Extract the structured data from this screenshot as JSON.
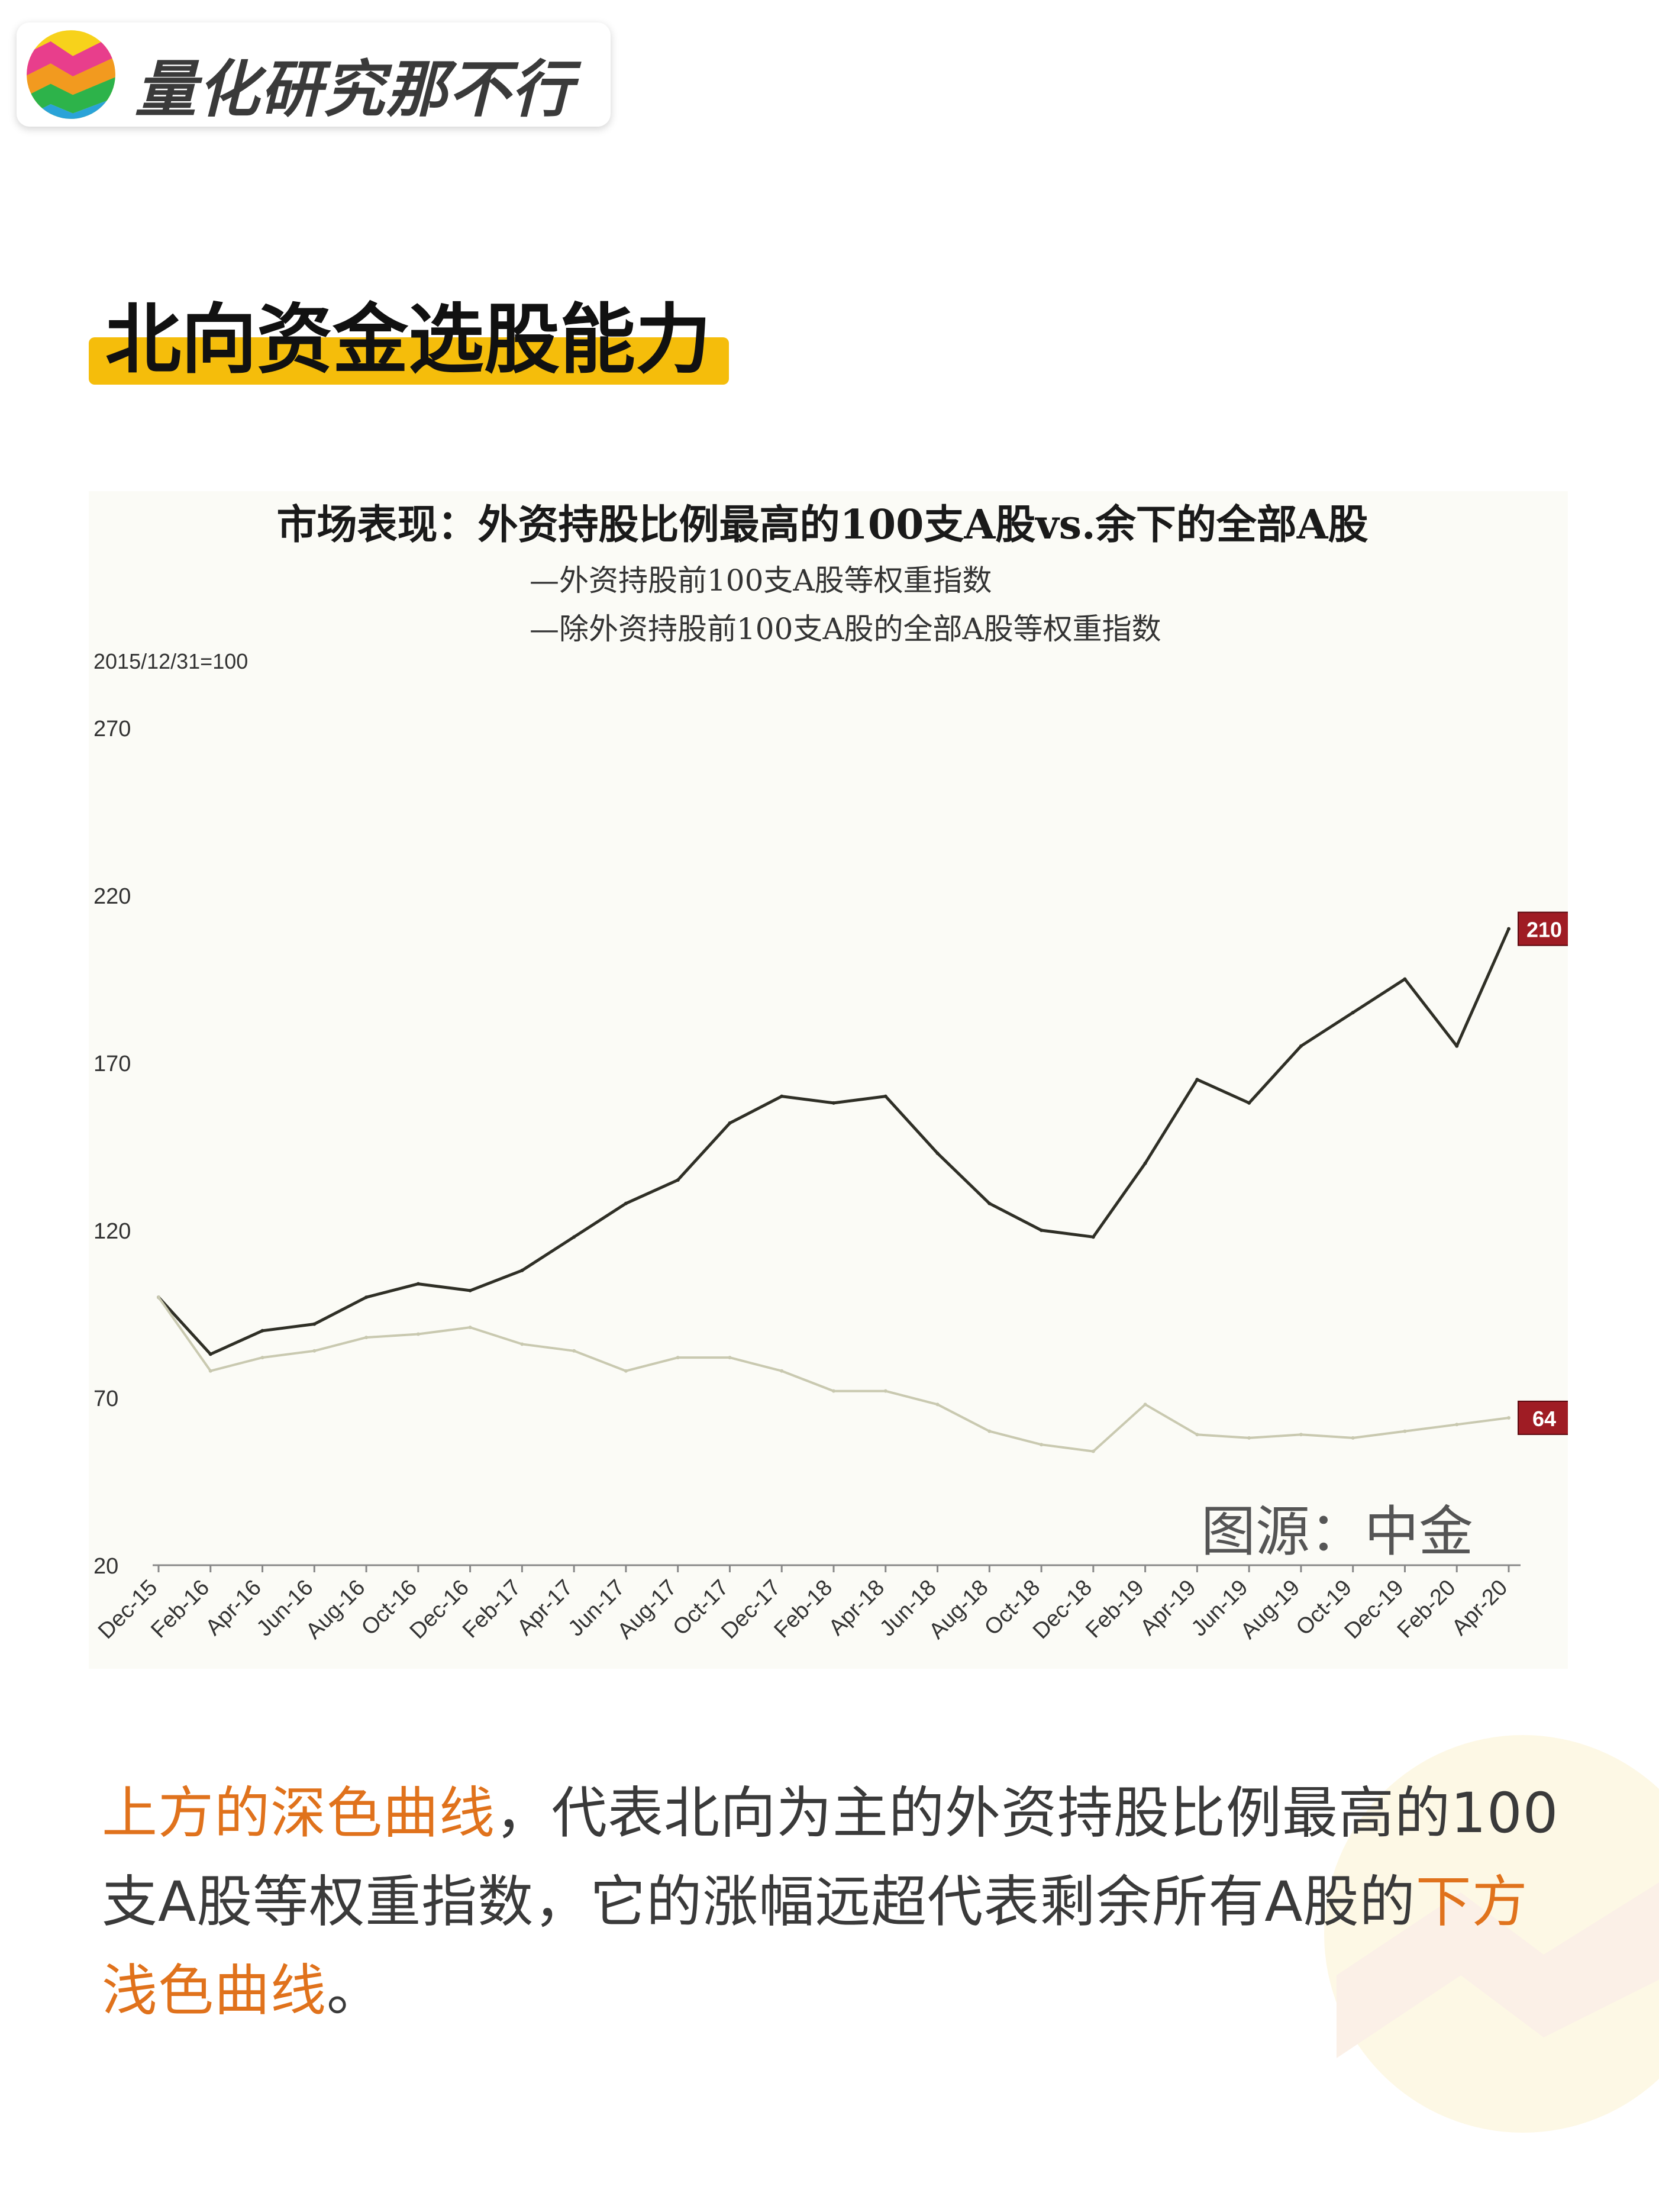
{
  "brand": {
    "name": "量化研究那不行"
  },
  "heading": {
    "text": "北向资金选股能力"
  },
  "colors": {
    "accent": "#f5bd0b",
    "highlight_text": "#e0721c",
    "dark_series": "#2f2f26",
    "light_series": "#c9c9b0",
    "end_label_bg": "#9f1c24"
  },
  "chart_data": {
    "type": "line",
    "title": "市场表现：外资持股比例最高的100支A股vs.余下的全部A股",
    "legend": [
      "—外资持股前100支A股等权重指数",
      "—除外资持股前100支A股的全部A股等权重指数"
    ],
    "base_note": "2015/12/31=100",
    "ylim": [
      20,
      270
    ],
    "yticks": [
      270,
      220,
      170,
      120,
      70,
      20
    ],
    "categories": [
      "Dec-15",
      "Feb-16",
      "Apr-16",
      "Jun-16",
      "Aug-16",
      "Oct-16",
      "Dec-16",
      "Feb-17",
      "Apr-17",
      "Jun-17",
      "Aug-17",
      "Oct-17",
      "Dec-17",
      "Feb-18",
      "Apr-18",
      "Jun-18",
      "Aug-18",
      "Oct-18",
      "Dec-18",
      "Feb-19",
      "Apr-19",
      "Jun-19",
      "Aug-19",
      "Oct-19",
      "Dec-19",
      "Feb-20",
      "Apr-20"
    ],
    "series": [
      {
        "name": "外资持股前100支A股等权重指数",
        "end_label": "210",
        "values": [
          100,
          83,
          90,
          92,
          100,
          104,
          102,
          108,
          118,
          128,
          135,
          152,
          160,
          158,
          160,
          143,
          128,
          120,
          118,
          140,
          165,
          158,
          175,
          185,
          195,
          175,
          210
        ]
      },
      {
        "name": "除外资持股前100支A股的全部A股等权重指数",
        "end_label": "64",
        "values": [
          100,
          78,
          82,
          84,
          88,
          89,
          91,
          86,
          84,
          78,
          82,
          82,
          78,
          72,
          72,
          68,
          60,
          56,
          54,
          68,
          59,
          58,
          59,
          58,
          60,
          62,
          64
        ]
      }
    ],
    "source": "图源：中金"
  },
  "paragraph": {
    "hl1": "上方的深色曲线",
    "mid": "，代表北向为主的外资持股比例最高的100支A股等权重指数，它的涨幅远超代表剩余所有A股的",
    "hl2": "下方浅色曲线",
    "end": "。"
  }
}
